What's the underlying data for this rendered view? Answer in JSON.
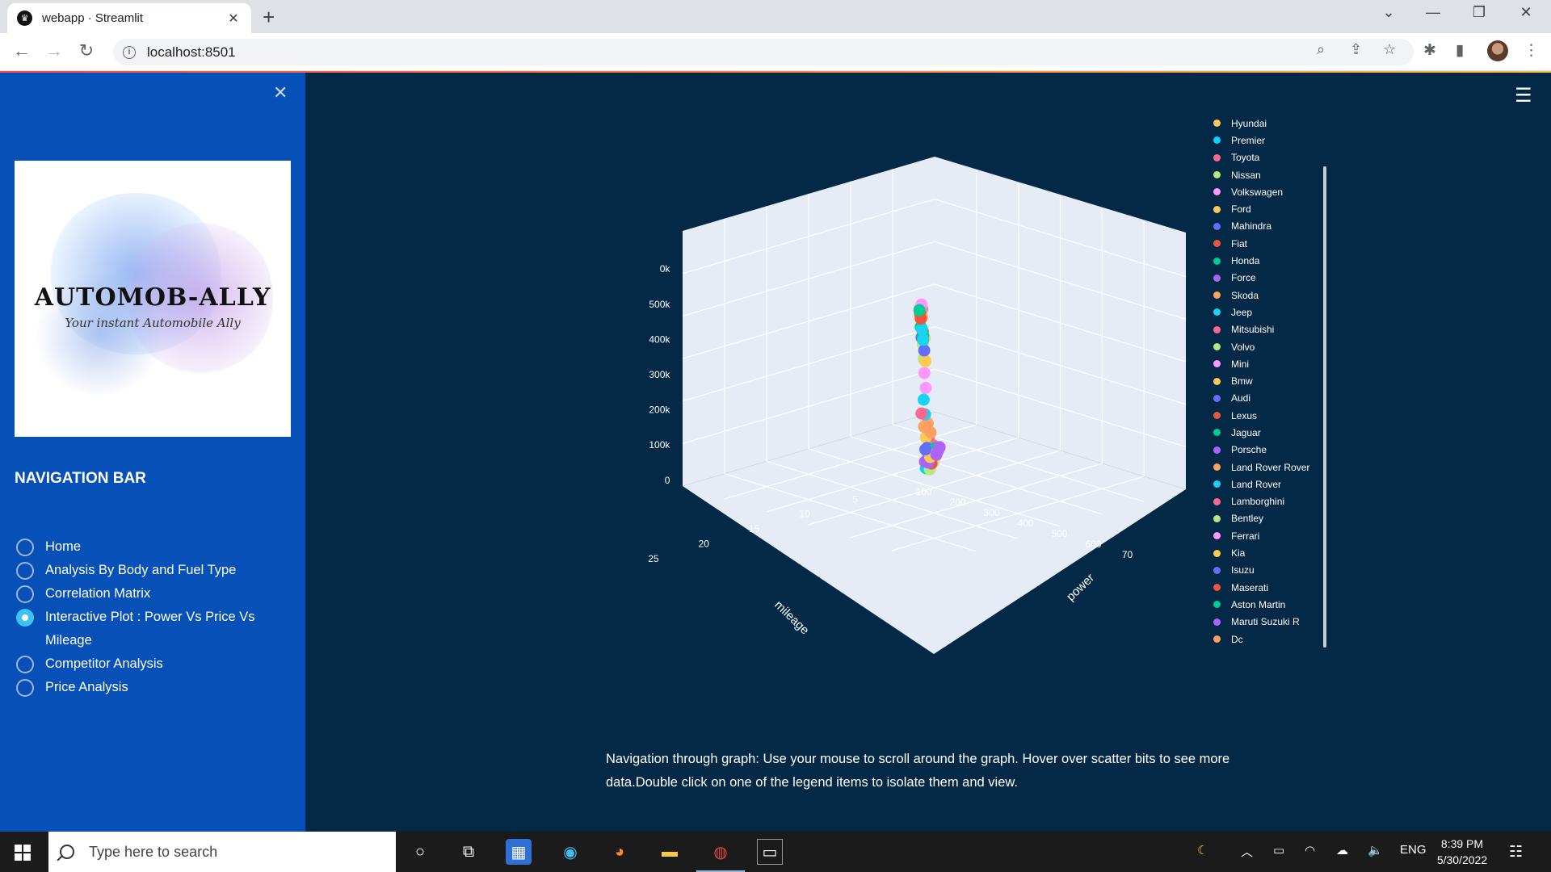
{
  "browser": {
    "tab_title": "webapp · Streamlit",
    "url": "localhost:8501"
  },
  "sidebar": {
    "logo_title": "AUTOMOB-ALLY",
    "logo_subtitle": "Your instant Automobile Ally",
    "nav_heading": "NAVIGATION BAR",
    "items": [
      {
        "label": "Home",
        "selected": false
      },
      {
        "label": "Analysis By Body and Fuel Type",
        "selected": false
      },
      {
        "label": "Correlation Matrix",
        "selected": false
      },
      {
        "label": "Interactive Plot : Power Vs Price Vs Mileage",
        "selected": true
      },
      {
        "label": "Competitor Analysis",
        "selected": false
      },
      {
        "label": "Price Analysis",
        "selected": false
      }
    ]
  },
  "main": {
    "caption": "Navigation through graph: Use your mouse to scroll around the graph. Hover over scatter bits to see more data.Double click on one of the legend items to isolate them and view."
  },
  "chart_data": {
    "type": "scatter",
    "dimensions": 3,
    "axes": {
      "x": {
        "label": "mileage",
        "ticks": [
          "5",
          "10",
          "15",
          "20",
          "25"
        ]
      },
      "y": {
        "label": "power",
        "ticks": [
          "100",
          "200",
          "300",
          "400",
          "500",
          "600",
          "70"
        ]
      },
      "z": {
        "label": "",
        "ticks": [
          "0",
          "100k",
          "200k",
          "300k",
          "400k",
          "500k",
          "0k"
        ]
      }
    },
    "legend_placement": "right",
    "series": [
      {
        "name": "Hyundai",
        "color": "#fecb52",
        "points": [
          [
            17,
            120,
            70000
          ],
          [
            18,
            110,
            50000
          ],
          [
            19,
            100,
            45000
          ],
          [
            20,
            90,
            40000
          ]
        ]
      },
      {
        "name": "Premier",
        "color": "#00d5ff",
        "points": [
          [
            14,
            80,
            90000
          ],
          [
            16,
            70,
            60000
          ]
        ]
      },
      {
        "name": "Toyota",
        "color": "#ff6692",
        "points": [
          [
            12,
            200,
            250000
          ],
          [
            15,
            150,
            150000
          ],
          [
            18,
            110,
            90000
          ]
        ]
      },
      {
        "name": "Nissan",
        "color": "#b6e880",
        "points": [
          [
            16,
            110,
            60000
          ],
          [
            18,
            100,
            50000
          ]
        ]
      },
      {
        "name": "Volkswagen",
        "color": "#ff97ff",
        "points": [
          [
            17,
            115,
            70000
          ],
          [
            19,
            105,
            55000
          ]
        ]
      },
      {
        "name": "Ford",
        "color": "#fecb52",
        "points": [
          [
            13,
            180,
            180000
          ],
          [
            16,
            140,
            110000
          ],
          [
            18,
            120,
            80000
          ]
        ]
      },
      {
        "name": "Mahindra",
        "color": "#636efa",
        "points": [
          [
            14,
            150,
            140000
          ],
          [
            16,
            130,
            100000
          ],
          [
            15,
            140,
            110000
          ]
        ]
      },
      {
        "name": "Fiat",
        "color": "#ef553b",
        "points": [
          [
            16,
            110,
            80000
          ],
          [
            17,
            100,
            60000
          ]
        ]
      },
      {
        "name": "Honda",
        "color": "#00cc96",
        "points": [
          [
            17,
            120,
            90000
          ],
          [
            19,
            110,
            70000
          ]
        ]
      },
      {
        "name": "Force",
        "color": "#ab63fa",
        "points": [
          [
            13,
            130,
            120000
          ],
          [
            15,
            120,
            90000
          ]
        ]
      },
      {
        "name": "Skoda",
        "color": "#ffa15a",
        "points": [
          [
            14,
            180,
            200000
          ],
          [
            16,
            150,
            150000
          ]
        ]
      },
      {
        "name": "Jeep",
        "color": "#19d3f3",
        "points": [
          [
            11,
            250,
            300000
          ],
          [
            12,
            230,
            250000
          ]
        ]
      },
      {
        "name": "Mitsubishi",
        "color": "#ff6692",
        "points": [
          [
            10,
            230,
            280000
          ],
          [
            12,
            200,
            220000
          ]
        ]
      },
      {
        "name": "Volvo",
        "color": "#b6e880",
        "points": [
          [
            10,
            300,
            450000
          ],
          [
            11,
            250,
            400000
          ]
        ]
      },
      {
        "name": "Mini",
        "color": "#ff97ff",
        "points": [
          [
            12,
            190,
            350000
          ],
          [
            13,
            170,
            300000
          ]
        ]
      },
      {
        "name": "Bmw",
        "color": "#fecb52",
        "points": [
          [
            9,
            350,
            500000
          ],
          [
            11,
            300,
            450000
          ],
          [
            12,
            250,
            380000
          ]
        ]
      },
      {
        "name": "Audi",
        "color": "#636efa",
        "points": [
          [
            9,
            330,
            480000
          ],
          [
            11,
            280,
            420000
          ]
        ]
      },
      {
        "name": "Lexus",
        "color": "#ef553b",
        "points": [
          [
            8,
            350,
            550000
          ],
          [
            10,
            300,
            480000
          ]
        ]
      },
      {
        "name": "Jaguar",
        "color": "#00cc96",
        "points": [
          [
            8,
            380,
            520000
          ],
          [
            10,
            320,
            470000
          ]
        ]
      },
      {
        "name": "Porsche",
        "color": "#ab63fa",
        "points": [
          [
            7,
            450,
            580000
          ],
          [
            8,
            400,
            550000
          ]
        ]
      },
      {
        "name": "Land Rover Rover",
        "color": "#ffa15a",
        "points": [
          [
            8,
            400,
            560000
          ],
          [
            9,
            350,
            530000
          ]
        ]
      },
      {
        "name": "Land Rover",
        "color": "#19d3f3",
        "points": [
          [
            9,
            350,
            500000
          ],
          [
            10,
            320,
            460000
          ]
        ]
      },
      {
        "name": "Lamborghini",
        "color": "#ff6692",
        "points": [
          [
            6,
            600,
            600000
          ],
          [
            7,
            550,
            580000
          ]
        ]
      },
      {
        "name": "Bentley",
        "color": "#b6e880",
        "points": [
          [
            6,
            550,
            590000
          ]
        ]
      },
      {
        "name": "Ferrari",
        "color": "#ff97ff",
        "points": [
          [
            6,
            580,
            600000
          ],
          [
            7,
            520,
            590000
          ]
        ]
      },
      {
        "name": "Kia",
        "color": "#fecb52",
        "points": [
          [
            17,
            120,
            80000
          ],
          [
            16,
            130,
            90000
          ]
        ]
      },
      {
        "name": "Isuzu",
        "color": "#636efa",
        "points": [
          [
            13,
            150,
            150000
          ]
        ]
      },
      {
        "name": "Maserati",
        "color": "#ef553b",
        "points": [
          [
            7,
            430,
            570000
          ],
          [
            8,
            380,
            540000
          ]
        ]
      },
      {
        "name": "Aston Martin",
        "color": "#00cc96",
        "points": [
          [
            6,
            500,
            590000
          ]
        ]
      },
      {
        "name": "Maruti Suzuki R",
        "color": "#ab63fa",
        "points": [
          [
            20,
            80,
            40000
          ],
          [
            21,
            70,
            35000
          ],
          [
            22,
            65,
            30000
          ]
        ]
      },
      {
        "name": "Dc",
        "color": "#ffa15a",
        "points": [
          [
            12,
            180,
            220000
          ]
        ]
      }
    ]
  }
}
